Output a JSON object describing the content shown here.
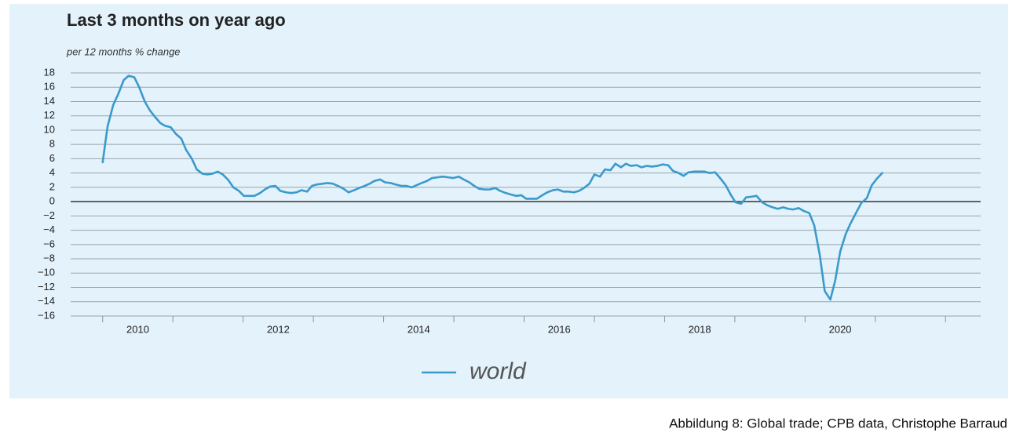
{
  "chart_data": {
    "type": "line",
    "title": "Last 3 months on year ago",
    "subtitle": "per 12 months % change",
    "caption": "Abbildung 8: Global trade; CPB data, Christophe Barraud",
    "xlim": [
      2009.5,
      2022.5
    ],
    "xticks": [
      {
        "value": 2010.5,
        "label": "2010"
      },
      {
        "value": 2012.5,
        "label": "2012"
      },
      {
        "value": 2014.5,
        "label": "2014"
      },
      {
        "value": 2016.5,
        "label": "2016"
      },
      {
        "value": 2018.5,
        "label": "2018"
      },
      {
        "value": 2020.5,
        "label": "2020"
      }
    ],
    "x_tick_marks": [
      2010,
      2011,
      2012,
      2013,
      2014,
      2015,
      2016,
      2017,
      2018,
      2019,
      2020,
      2021,
      2022
    ],
    "ylim": [
      -16,
      18
    ],
    "yticks": [
      {
        "value": -16,
        "label": "−16"
      },
      {
        "value": -14,
        "label": "−14"
      },
      {
        "value": -12,
        "label": "−12"
      },
      {
        "value": -10,
        "label": "−10"
      },
      {
        "value": -8,
        "label": "−8"
      },
      {
        "value": -6,
        "label": "−6"
      },
      {
        "value": -4,
        "label": "−4"
      },
      {
        "value": -2,
        "label": "−2"
      },
      0,
      2,
      4,
      6,
      8,
      10,
      12,
      14,
      16,
      18
    ],
    "grid": true,
    "legend": "bottom",
    "x": [
      2010.0,
      2010.07,
      2010.15,
      2010.22,
      2010.3,
      2010.37,
      2010.45,
      2010.52,
      2010.6,
      2010.67,
      2010.75,
      2010.82,
      2010.89,
      2010.97,
      2011.04,
      2011.12,
      2011.19,
      2011.27,
      2011.34,
      2011.42,
      2011.49,
      2011.56,
      2011.64,
      2011.71,
      2011.79,
      2011.86,
      2011.94,
      2012.01,
      2012.09,
      2012.16,
      2012.24,
      2012.31,
      2012.38,
      2012.46,
      2012.53,
      2012.61,
      2012.68,
      2012.76,
      2012.83,
      2012.91,
      2012.98,
      2013.05,
      2013.13,
      2013.2,
      2013.28,
      2013.35,
      2013.43,
      2013.5,
      2013.58,
      2013.65,
      2013.73,
      2013.8,
      2013.87,
      2013.95,
      2014.02,
      2014.1,
      2014.17,
      2014.25,
      2014.32,
      2014.4,
      2014.47,
      2014.54,
      2014.62,
      2014.69,
      2014.77,
      2014.84,
      2014.92,
      2014.99,
      2015.07,
      2015.14,
      2015.22,
      2015.29,
      2015.36,
      2015.44,
      2015.51,
      2015.59,
      2015.66,
      2015.74,
      2015.81,
      2015.89,
      2015.96,
      2016.03,
      2016.11,
      2016.18,
      2016.26,
      2016.33,
      2016.41,
      2016.48,
      2016.56,
      2016.63,
      2016.71,
      2016.78,
      2016.85,
      2016.93,
      2017.0,
      2017.08,
      2017.15,
      2017.23,
      2017.3,
      2017.38,
      2017.45,
      2017.52,
      2017.6,
      2017.67,
      2017.75,
      2017.82,
      2017.9,
      2017.97,
      2018.05,
      2018.12,
      2018.2,
      2018.27,
      2018.34,
      2018.42,
      2018.49,
      2018.57,
      2018.64,
      2018.72,
      2018.79,
      2018.87,
      2018.94,
      2019.01,
      2019.09,
      2019.16,
      2019.24,
      2019.31,
      2019.39,
      2019.46,
      2019.54,
      2019.61,
      2019.69,
      2019.76,
      2019.83,
      2019.91,
      2019.98,
      2020.06,
      2020.13,
      2020.21,
      2020.28,
      2020.36,
      2020.43,
      2020.5,
      2020.58,
      2020.65,
      2020.73,
      2020.8,
      2020.88,
      2020.95,
      2021.03,
      2021.1
    ],
    "series": [
      {
        "name": "world",
        "color": "#3a9acb",
        "values": [
          5.5,
          10.5,
          13.5,
          15,
          17,
          17.6,
          17.4,
          16,
          14,
          12.8,
          11.8,
          11,
          10.6,
          10.4,
          9.5,
          8.8,
          7.2,
          6,
          4.5,
          3.9,
          3.8,
          3.9,
          4.2,
          3.8,
          3,
          2,
          1.5,
          0.8,
          0.8,
          0.8,
          1.2,
          1.7,
          2.1,
          2.2,
          1.5,
          1.3,
          1.2,
          1.3,
          1.6,
          1.4,
          2.2,
          2.4,
          2.5,
          2.6,
          2.5,
          2.2,
          1.8,
          1.3,
          1.6,
          1.9,
          2.2,
          2.5,
          2.9,
          3.1,
          2.7,
          2.6,
          2.4,
          2.2,
          2.2,
          2,
          2.3,
          2.6,
          2.9,
          3.3,
          3.4,
          3.5,
          3.4,
          3.3,
          3.5,
          3.1,
          2.7,
          2.2,
          1.8,
          1.7,
          1.7,
          1.9,
          1.5,
          1.2,
          1.0,
          0.8,
          0.9,
          0.4,
          0.4,
          0.4,
          0.9,
          1.3,
          1.6,
          1.7,
          1.4,
          1.4,
          1.3,
          1.5,
          1.9,
          2.5,
          3.8,
          3.5,
          4.5,
          4.4,
          5.3,
          4.8,
          5.3,
          5.0,
          5.1,
          4.8,
          5.0,
          4.9,
          5.0,
          5.2,
          5.1,
          4.3,
          4.0,
          3.6,
          4.1,
          4.2,
          4.2,
          4.2,
          4.0,
          4.1,
          3.3,
          2.3,
          1.0,
          -0.1,
          -0.3,
          0.6,
          0.7,
          0.8,
          -0.1,
          -0.5,
          -0.8,
          -1.0,
          -0.8,
          -1.0,
          -1.1,
          -0.9,
          -1.3,
          -1.6,
          -3.3,
          -7.5,
          -12.5,
          -13.7,
          -11,
          -7,
          -4.5,
          -3,
          -1.5,
          -0.2,
          0.5,
          2.3,
          3.3,
          4.0
        ]
      }
    ]
  }
}
